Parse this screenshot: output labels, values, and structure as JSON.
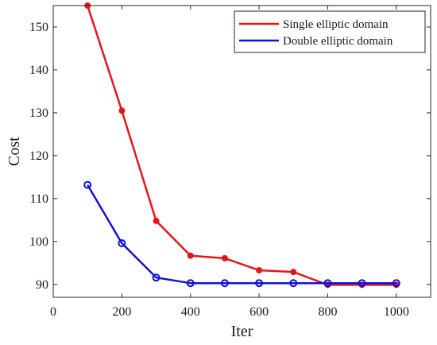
{
  "chart_data": {
    "type": "line",
    "title": "",
    "xlabel": "Iter",
    "ylabel": "Cost",
    "xlim": [
      0,
      1100
    ],
    "ylim": [
      87,
      155
    ],
    "xticks": [
      0,
      200,
      400,
      600,
      800,
      1000
    ],
    "yticks": [
      90,
      100,
      110,
      120,
      130,
      140,
      150
    ],
    "grid": false,
    "legend_location": "top-right",
    "x": [
      100,
      200,
      300,
      400,
      500,
      600,
      700,
      800,
      900,
      1000
    ],
    "series": [
      {
        "name": "Single elliptic domain",
        "color": "#e8141b",
        "marker": "dot",
        "values": [
          155,
          130.5,
          104.8,
          96.7,
          96.1,
          93.3,
          92.9,
          89.9,
          89.9,
          89.9
        ]
      },
      {
        "name": "Double elliptic domain",
        "color": "#1212d6",
        "marker": "circle",
        "values": [
          113.2,
          99.6,
          91.6,
          90.3,
          90.3,
          90.3,
          90.3,
          90.3,
          90.3,
          90.3
        ]
      }
    ]
  }
}
